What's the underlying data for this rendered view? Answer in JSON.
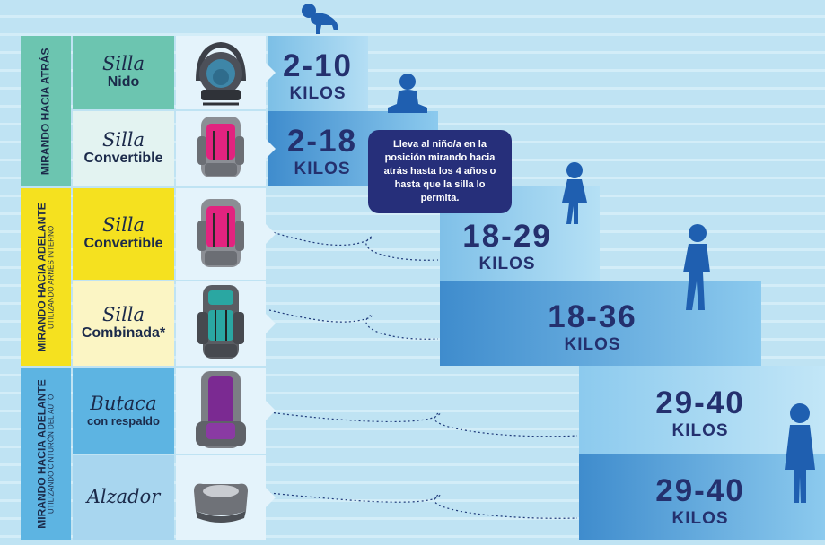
{
  "sections": [
    {
      "main": "MIRANDO HACIA ATRÁS",
      "sub": ""
    },
    {
      "main": "MIRANDO HACIA ADELANTE",
      "sub": "UTILIZANDO ARNÉS INTERNO"
    },
    {
      "main": "MIRANDO HACIA ADELANTE",
      "sub": "UTILIZANDO CINTURÓN DEL AUTO"
    }
  ],
  "seats": [
    {
      "line1": "Silla",
      "line2": "Nido",
      "weight": "2-10",
      "unit": "KILOS",
      "icon": "infant-carrier-icon"
    },
    {
      "line1": "Silla",
      "line2": "Convertible",
      "weight": "2-18",
      "unit": "KILOS",
      "icon": "convertible-seat-icon"
    },
    {
      "line1": "Silla",
      "line2": "Convertible",
      "weight": "18-29",
      "unit": "KILOS",
      "icon": "convertible-seat-icon"
    },
    {
      "line1": "Silla",
      "line2": "Combinada*",
      "weight": "18-36",
      "unit": "KILOS",
      "icon": "combination-seat-icon"
    },
    {
      "line1": "Butaca",
      "line2": "con respaldo",
      "weight": "29-40",
      "unit": "KILOS",
      "icon": "high-back-booster-icon"
    },
    {
      "line1": "Alzador",
      "line2": "",
      "weight": "29-40",
      "unit": "KILOS",
      "icon": "backless-booster-icon"
    }
  ],
  "note": "Lleva al niño/a en la posición mirando hacia atrás hasta los 4 años o hasta que la silla lo permita.",
  "colors": {
    "rear": "#6cc5b0",
    "forward_harness": "#f5e11f",
    "forward_belt": "#5db4e2",
    "name_bg": "#e7f4f4",
    "step_light": "#a9d8f1",
    "step_mid": "#7fc0e8",
    "step_dark": "#4d97d4",
    "child": "#1f5fb0",
    "note_bg": "#262f7a"
  },
  "icons": [
    "crawling-baby-icon",
    "sitting-baby-icon",
    "toddler-icon",
    "walking-child-icon",
    "standing-girl-icon"
  ]
}
